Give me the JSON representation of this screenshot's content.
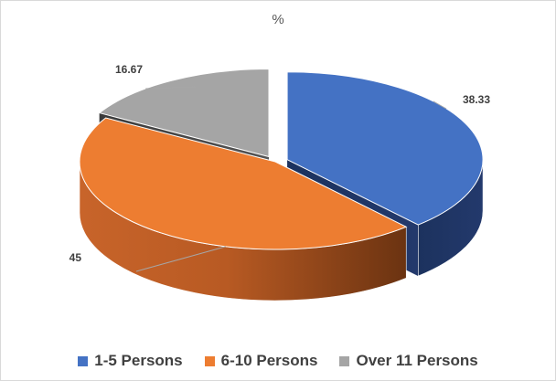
{
  "chart_data": {
    "type": "pie",
    "title": "%",
    "categories": [
      "1-5 Persons",
      "6-10 Persons",
      "Over 11 Persons"
    ],
    "values": [
      38.33,
      45,
      16.67
    ],
    "data_labels": [
      "38.33",
      "45",
      "16.67"
    ],
    "colors": [
      "#4472c4",
      "#ed7d31",
      "#a5a5a5"
    ],
    "legend_position": "bottom",
    "style": "3d-exploded"
  }
}
